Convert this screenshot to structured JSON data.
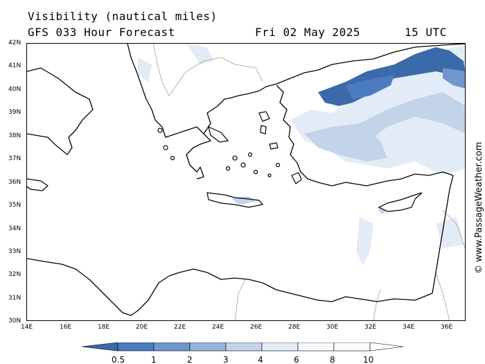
{
  "header": {
    "title": "Visibility (nautical miles)",
    "model": "GFS 033 Hour Forecast",
    "date": "Fri 02 May 2025",
    "time": "15 UTC"
  },
  "map": {
    "lon_range": [
      14,
      37
    ],
    "lat_range": [
      30,
      42
    ],
    "x_ticks": [
      "14E",
      "16E",
      "18E",
      "20E",
      "22E",
      "24E",
      "26E",
      "28E",
      "30E",
      "32E",
      "34E",
      "36E"
    ],
    "y_ticks": [
      "42N",
      "41N",
      "40N",
      "39N",
      "38N",
      "37N",
      "36N",
      "35N",
      "34N",
      "33N",
      "32N",
      "31N",
      "30N"
    ],
    "colors": {
      "v05": "#3a6aaa",
      "v1": "#4a7cbf",
      "v2": "#6f97cc",
      "v3": "#98b4da",
      "v4": "#c2d3ea",
      "v6": "#e3ecf6",
      "v8": "#f5f8fc",
      "coast": "#000000",
      "border": "#a0a0a0"
    }
  },
  "colorbar": {
    "labels": [
      "0.5",
      "1",
      "2",
      "3",
      "4",
      "6",
      "8",
      "10"
    ],
    "colors": [
      "#3a6aaa",
      "#4a7cbf",
      "#6f97cc",
      "#98b4da",
      "#c2d3ea",
      "#e3ecf6",
      "#f5f8fc",
      "#ffffff"
    ]
  },
  "credit": "© www.PassageWeather.com"
}
